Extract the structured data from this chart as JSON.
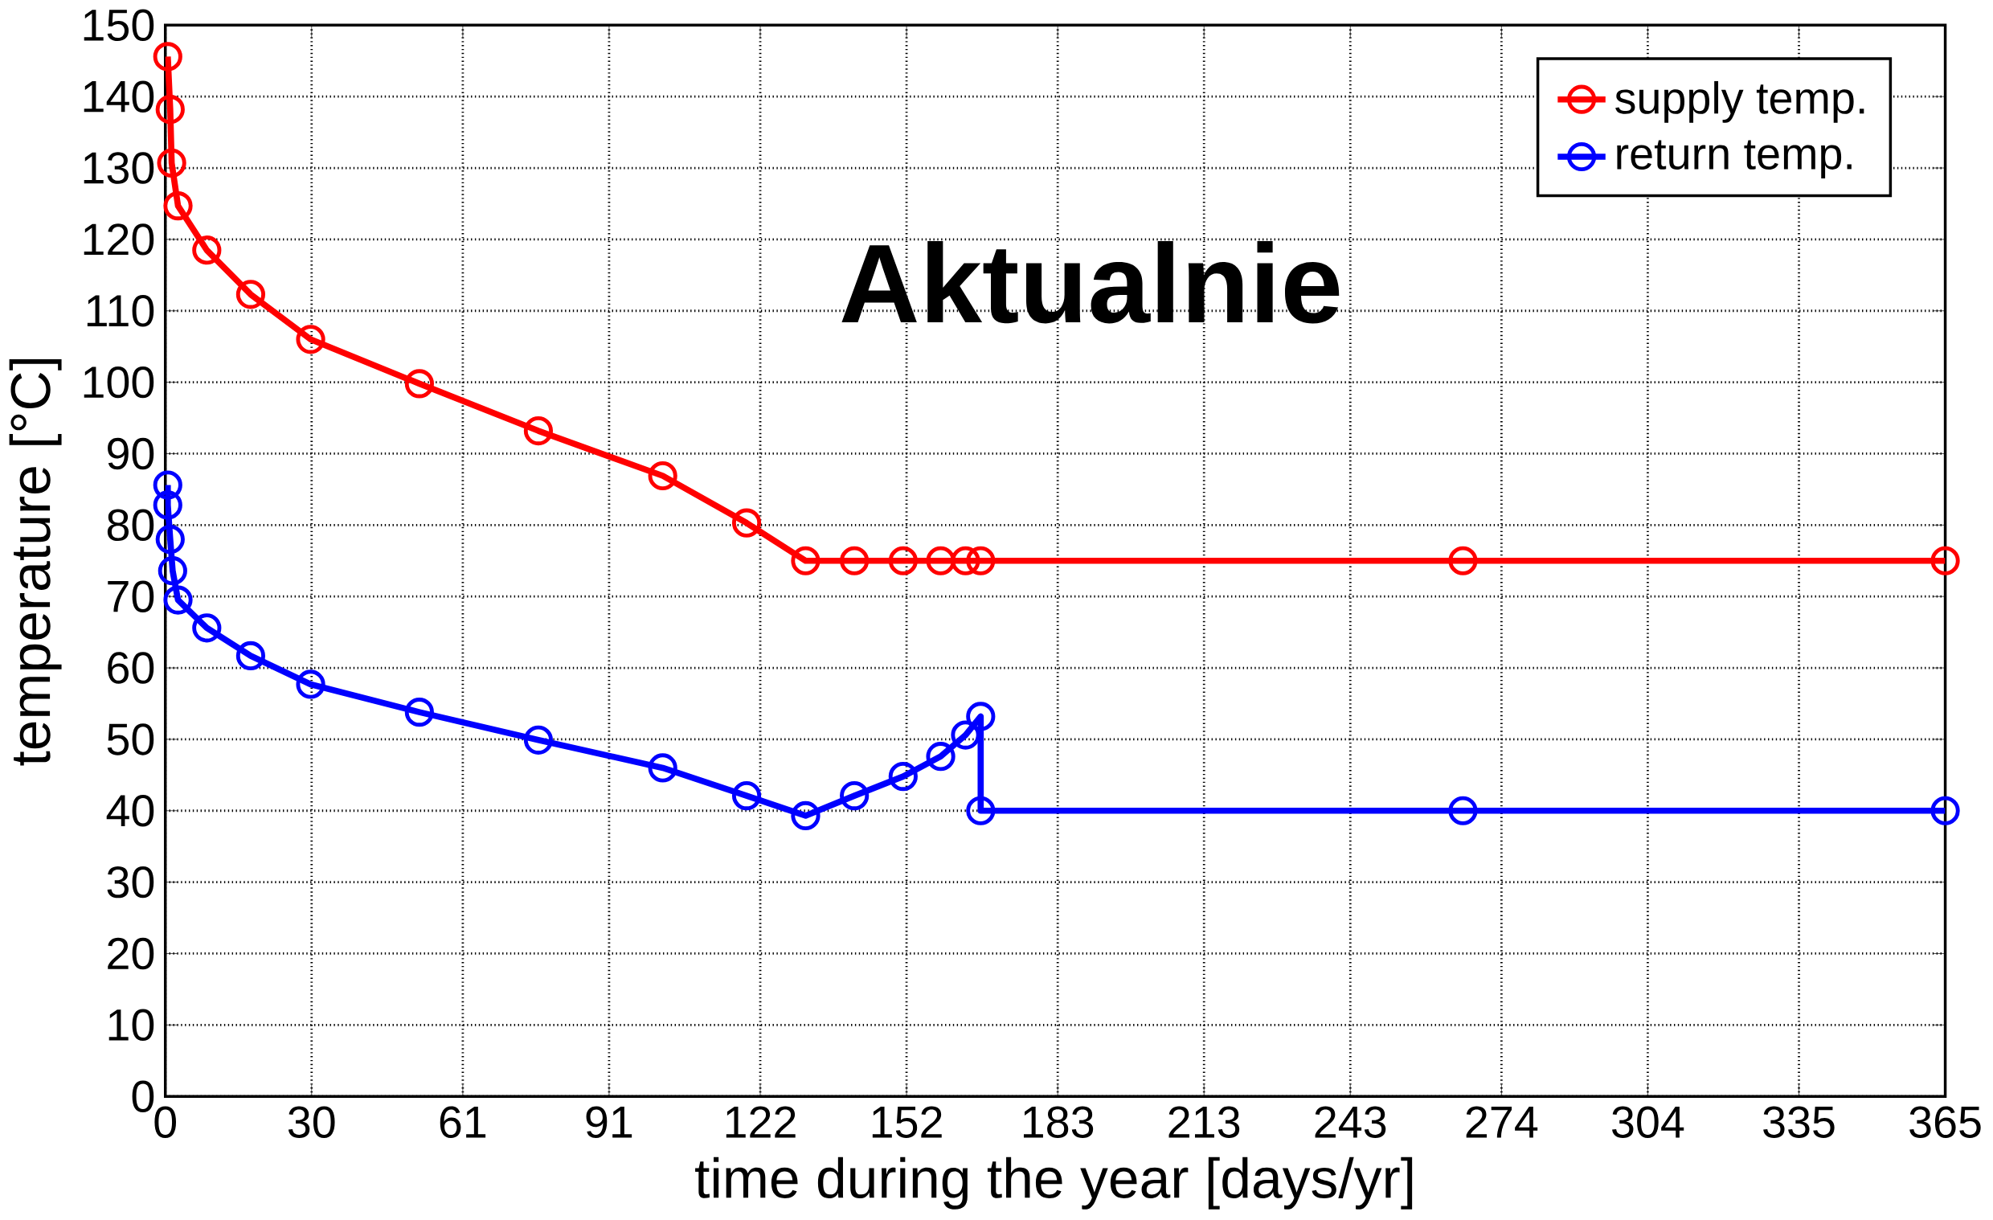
{
  "chart_data": {
    "type": "line",
    "xlabel": "time during the year [days/yr]",
    "ylabel": "temperature [°C]",
    "annotations": [
      "Aktualnie"
    ],
    "xlim": [
      0,
      365
    ],
    "ylim": [
      0,
      150
    ],
    "xticks": [
      0,
      30,
      61,
      91,
      122,
      152,
      183,
      213,
      243,
      274,
      304,
      335,
      365
    ],
    "yticks": [
      0,
      10,
      20,
      30,
      40,
      50,
      60,
      70,
      80,
      90,
      100,
      110,
      120,
      130,
      140,
      150
    ],
    "grid": true,
    "legend": "top right",
    "marker": "circle",
    "line_style": "solid",
    "series": [
      {
        "name": "supply temp.",
        "color": "#ff0000",
        "x": [
          0.5,
          1,
          1.3,
          2.6,
          8.5,
          17.5,
          29.8,
          52.1,
          76.5,
          102,
          119.2,
          131.3,
          141.3,
          151.3,
          159,
          164.1,
          167.2,
          266.1,
          365
        ],
        "values": [
          145.6,
          138.2,
          130.7,
          124.7,
          118.5,
          112.3,
          106,
          99.8,
          93.2,
          86.9,
          80.3,
          75,
          75,
          75,
          75,
          75,
          75,
          75,
          75
        ]
      },
      {
        "name": "return temp.",
        "color": "#0000ff",
        "x": [
          0.5,
          0.5,
          1,
          1.5,
          2.6,
          8.5,
          17.5,
          29.8,
          52.1,
          76.5,
          102,
          119.2,
          131.3,
          141.3,
          151.3,
          159,
          164.1,
          167.2,
          167.2,
          266.1,
          365
        ],
        "values": [
          85.6,
          82.8,
          78,
          73.6,
          69.5,
          65.6,
          61.7,
          57.7,
          53.8,
          49.9,
          46,
          42.1,
          39.3,
          42.1,
          44.8,
          47.6,
          50.6,
          53.2,
          40,
          40,
          40
        ]
      }
    ]
  }
}
